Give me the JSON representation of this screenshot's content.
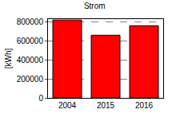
{
  "chart_data": {
    "type": "bar",
    "title": "Strom",
    "y_label": "[kWh]",
    "categories": [
      "2004",
      "2015",
      "2016"
    ],
    "values": [
      820000,
      660000,
      760000
    ],
    "color": "#ff0000",
    "ylim": [
      0,
      830000
    ],
    "yticks": [
      0,
      200000,
      400000,
      600000,
      800000
    ],
    "grid": true
  }
}
